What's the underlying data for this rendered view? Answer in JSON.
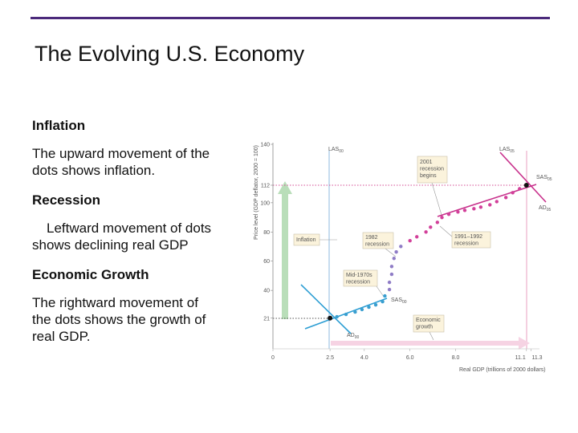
{
  "title": "The Evolving U.S. Economy",
  "sections": [
    {
      "heading": "Inflation",
      "body": "The upward movement of the dots shows inflation."
    },
    {
      "heading": "Recession",
      "body": "Leftward movement of dots shows declining real GDP"
    },
    {
      "heading": "Economic Growth",
      "body": "The rightward movement of the dots shows the growth of real GDP."
    }
  ],
  "chart_data": {
    "type": "scatter",
    "x_label": "Real GDP (trillions of 2000 dollars)",
    "y_label": "Price level (GDP deflator, 2000 = 100)",
    "xlim": [
      0,
      11.6
    ],
    "ylim": [
      0,
      140
    ],
    "xticks": [
      0,
      2.5,
      {
        "value": 4,
        "label": "4.0"
      },
      {
        "value": 6,
        "label": "6.0"
      },
      {
        "value": 8,
        "label": "8.0"
      },
      11.1,
      11.3
    ],
    "yticks": [
      21,
      40,
      60,
      80,
      100,
      112,
      140
    ],
    "highlight_color": "#e0609a",
    "series": [
      {
        "color": "#3a9fd0",
        "x": [
          2.8,
          3.2,
          3.6,
          3.9,
          4.2,
          4.5,
          4.8,
          4.9
        ],
        "values": [
          21.9,
          23.6,
          25.2,
          26.9,
          28.5,
          30.1,
          32.3,
          36.2
        ]
      },
      {
        "color": "#8f7cc6",
        "x": [
          5.1,
          5.1,
          5.2,
          5.2,
          5.3,
          5.4,
          5.6
        ],
        "values": [
          40.6,
          45.5,
          51.0,
          56.4,
          61.9,
          66.3,
          70.1
        ]
      },
      {
        "color": "#d2409a",
        "x": [
          6.0,
          6.3,
          6.7,
          6.9,
          7.2,
          7.4,
          7.7,
          8.1,
          8.4,
          8.8,
          9.1,
          9.5,
          9.8,
          10.2,
          10.5,
          10.8
        ],
        "values": [
          74.0,
          76.7,
          80.0,
          83.3,
          86.6,
          89.9,
          92.1,
          93.7,
          94.8,
          95.9,
          97.0,
          98.6,
          100.8,
          103.6,
          106.9,
          109.6
        ]
      },
      {
        "color": "#111111",
        "x": [
          2.5,
          11.1
        ],
        "values": [
          21,
          112
        ]
      }
    ],
    "curve_labels": [
      {
        "label": "LAS",
        "sub": "00"
      },
      {
        "label": "LAS",
        "sub": "05"
      },
      {
        "label": "SAS",
        "sub": "05"
      },
      {
        "label": "AD",
        "sub": "05"
      },
      {
        "label": "SAS",
        "sub": "00"
      },
      {
        "label": "AD",
        "sub": "00"
      }
    ],
    "annotations": [
      [
        "Inflation"
      ],
      [
        "2001",
        "recession",
        "begins"
      ],
      [
        "1982",
        "recession"
      ],
      [
        "1991–1992",
        "recession"
      ],
      [
        "Mid-1970s",
        "recession"
      ],
      [
        "Economic",
        "growth"
      ]
    ]
  }
}
